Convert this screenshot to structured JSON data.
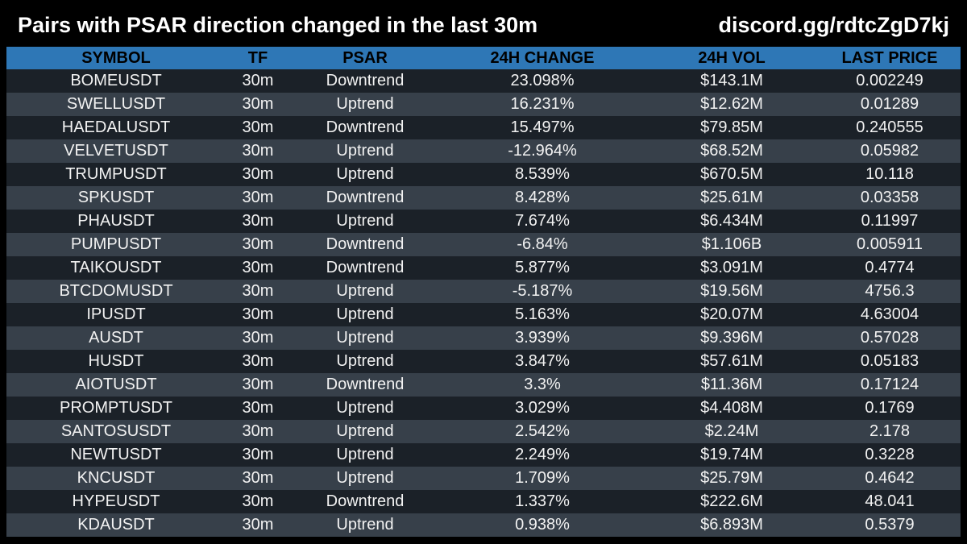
{
  "header": {
    "title": "Pairs with PSAR direction changed in the last 30m",
    "link": "discord.gg/rdtcZgD7kj"
  },
  "colors": {
    "background": "#000000",
    "header_row": "#2e77b6",
    "row_dark": "#1b2128",
    "row_light": "#37404a",
    "text": "#ffffff"
  },
  "table": {
    "columns": [
      "SYMBOL",
      "TF",
      "PSAR",
      "24H CHANGE",
      "24H VOL",
      "LAST PRICE"
    ],
    "rows": [
      [
        "BOMEUSDT",
        "30m",
        "Downtrend",
        "23.098%",
        "$143.1M",
        "0.002249"
      ],
      [
        "SWELLUSDT",
        "30m",
        "Uptrend",
        "16.231%",
        "$12.62M",
        "0.01289"
      ],
      [
        "HAEDALUSDT",
        "30m",
        "Downtrend",
        "15.497%",
        "$79.85M",
        "0.240555"
      ],
      [
        "VELVETUSDT",
        "30m",
        "Uptrend",
        "-12.964%",
        "$68.52M",
        "0.05982"
      ],
      [
        "TRUMPUSDT",
        "30m",
        "Uptrend",
        "8.539%",
        "$670.5M",
        "10.118"
      ],
      [
        "SPKUSDT",
        "30m",
        "Downtrend",
        "8.428%",
        "$25.61M",
        "0.03358"
      ],
      [
        "PHAUSDT",
        "30m",
        "Uptrend",
        "7.674%",
        "$6.434M",
        "0.11997"
      ],
      [
        "PUMPUSDT",
        "30m",
        "Downtrend",
        "-6.84%",
        "$1.106B",
        "0.005911"
      ],
      [
        "TAIKOUSDT",
        "30m",
        "Downtrend",
        "5.877%",
        "$3.091M",
        "0.4774"
      ],
      [
        "BTCDOMUSDT",
        "30m",
        "Uptrend",
        "-5.187%",
        "$19.56M",
        "4756.3"
      ],
      [
        "IPUSDT",
        "30m",
        "Uptrend",
        "5.163%",
        "$20.07M",
        "4.63004"
      ],
      [
        "AUSDT",
        "30m",
        "Uptrend",
        "3.939%",
        "$9.396M",
        "0.57028"
      ],
      [
        "HUSDT",
        "30m",
        "Uptrend",
        "3.847%",
        "$57.61M",
        "0.05183"
      ],
      [
        "AIOTUSDT",
        "30m",
        "Downtrend",
        "3.3%",
        "$11.36M",
        "0.17124"
      ],
      [
        "PROMPTUSDT",
        "30m",
        "Uptrend",
        "3.029%",
        "$4.408M",
        "0.1769"
      ],
      [
        "SANTOSUSDT",
        "30m",
        "Uptrend",
        "2.542%",
        "$2.24M",
        "2.178"
      ],
      [
        "NEWTUSDT",
        "30m",
        "Uptrend",
        "2.249%",
        "$19.74M",
        "0.3228"
      ],
      [
        "KNCUSDT",
        "30m",
        "Uptrend",
        "1.709%",
        "$25.79M",
        "0.4642"
      ],
      [
        "HYPEUSDT",
        "30m",
        "Downtrend",
        "1.337%",
        "$222.6M",
        "48.041"
      ],
      [
        "KDAUSDT",
        "30m",
        "Uptrend",
        "0.938%",
        "$6.893M",
        "0.5379"
      ]
    ]
  }
}
